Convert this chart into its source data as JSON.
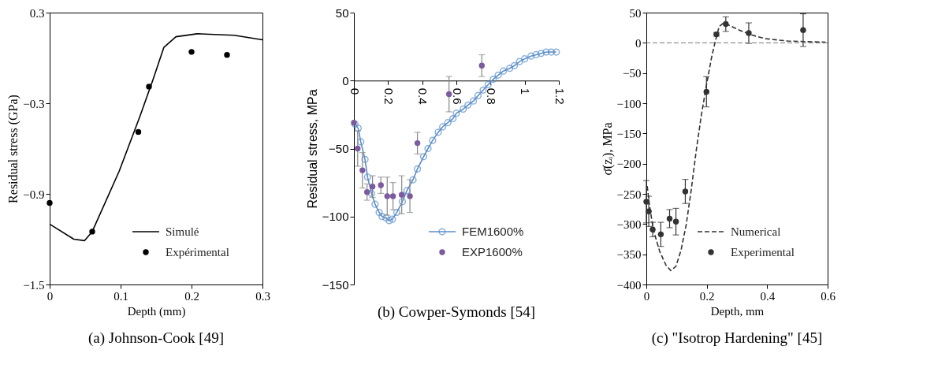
{
  "chart_data": [
    {
      "type": "line",
      "title": "(a) Johnson-Cook [49]",
      "xlabel": "Depth (mm)",
      "ylabel": "Residual stress (GPa)",
      "xlim": [
        0,
        0.3
      ],
      "ylim": [
        -1.5,
        0.3
      ],
      "xticks": [
        0,
        0.1,
        0.2,
        0.3
      ],
      "yticks": [
        -1.5,
        -0.9,
        -0.3,
        0.3
      ],
      "grid": false,
      "legend": "bottom right",
      "series": [
        {
          "name": "Simulé",
          "marker": "none",
          "line_style": "solid",
          "color": "#000000",
          "x": [
            0,
            0.034,
            0.049,
            0.06,
            0.098,
            0.127,
            0.146,
            0.161,
            0.178,
            0.208,
            0.26,
            0.3
          ],
          "values": [
            -1.1,
            -1.2,
            -1.21,
            -1.15,
            -0.75,
            -0.39,
            -0.14,
            0.07,
            0.14,
            0.16,
            0.15,
            0.12
          ]
        },
        {
          "name": "Expérimental",
          "type": "scatter",
          "marker": "circle",
          "color": "#000000",
          "x": [
            0,
            0.06,
            0.125,
            0.14,
            0.2,
            0.25
          ],
          "values": [
            -0.96,
            -1.15,
            -0.49,
            -0.19,
            0.04,
            0.02
          ]
        }
      ]
    },
    {
      "type": "line",
      "title": "(b) Cowper-Symonds [54]",
      "ylabel": "Residual stress, MPa",
      "xlim": [
        0,
        1.2
      ],
      "ylim": [
        -150,
        50
      ],
      "xticks": [
        0,
        0.2,
        0.4,
        0.6,
        0.8,
        1,
        1.2
      ],
      "yticks": [
        -150,
        -100,
        -50,
        0,
        50
      ],
      "grid": false,
      "legend": "bottom right",
      "series": [
        {
          "name": "FEM1600%",
          "marker": "circle",
          "line_style": "solid",
          "color": "#5b8ec8",
          "x": [
            0.006,
            0.025,
            0.04,
            0.065,
            0.08,
            0.103,
            0.124,
            0.148,
            0.165,
            0.188,
            0.207,
            0.225,
            0.251,
            0.284,
            0.31,
            0.346,
            0.372,
            0.408,
            0.434,
            0.461,
            0.494,
            0.52,
            0.55,
            0.58,
            0.6,
            0.64,
            0.668,
            0.7,
            0.727,
            0.757,
            0.786,
            0.816,
            0.845,
            0.875,
            0.912,
            0.94,
            0.97,
            1.0,
            1.037,
            1.067,
            1.096,
            1.126,
            1.156,
            1.185
          ],
          "values": [
            -32,
            -35,
            -45,
            -58,
            -71,
            -83,
            -91,
            -97,
            -100,
            -101,
            -103,
            -102,
            -97,
            -89,
            -81,
            -73,
            -65,
            -56,
            -50,
            -44,
            -38,
            -34,
            -31,
            -28,
            -24,
            -21,
            -18,
            -15,
            -11,
            -7,
            -3,
            1,
            4,
            7,
            9,
            11,
            14,
            16,
            18,
            19,
            20,
            21,
            21,
            21
          ]
        },
        {
          "name": "EXP1600%",
          "type": "scatter",
          "marker": "circle",
          "color": "#7b5a9e",
          "x": [
            0.0,
            0.022,
            0.05,
            0.077,
            0.109,
            0.158,
            0.195,
            0.229,
            0.28,
            0.328,
            0.372,
            0.557,
            0.749
          ],
          "values": [
            -31,
            -50,
            -66,
            -82,
            -78,
            -77,
            -85,
            -85,
            -84,
            -85,
            -46,
            -10,
            11
          ],
          "errors": [
            null,
            13,
            13,
            6,
            8,
            6,
            14,
            10,
            14,
            12,
            8,
            13,
            8
          ]
        }
      ]
    },
    {
      "type": "line",
      "title": "(c) \"Isotrop Hardening\" [45]",
      "xlabel": "Depth, mm",
      "ylabel": "σ̄(zᵢ), MPa",
      "xlim": [
        0,
        0.6
      ],
      "ylim": [
        -400,
        50
      ],
      "xticks": [
        0,
        0.2,
        0.4,
        0.6
      ],
      "yticks": [
        -400,
        -350,
        -300,
        -250,
        -200,
        -150,
        -100,
        -50,
        0,
        50
      ],
      "grid": false,
      "legend": "bottom right",
      "ref_lines": [
        {
          "axis": "y",
          "value": 0,
          "color": "#777777",
          "line_style": "dashed"
        }
      ],
      "series": [
        {
          "name": "Numerical",
          "marker": "none",
          "line_style": "dashed",
          "color": "#333333",
          "x": [
            0.003,
            0.01,
            0.023,
            0.044,
            0.065,
            0.081,
            0.098,
            0.115,
            0.132,
            0.149,
            0.165,
            0.182,
            0.199,
            0.216,
            0.228,
            0.241,
            0.256,
            0.274,
            0.308,
            0.342,
            0.392,
            0.467,
            0.593
          ],
          "values": [
            -237,
            -267,
            -309,
            -345,
            -368,
            -377,
            -370,
            -343,
            -301,
            -242,
            -179,
            -120,
            -70,
            -24,
            2,
            27,
            33,
            29,
            21,
            14,
            7,
            3,
            1
          ]
        },
        {
          "name": "Experimental",
          "type": "scatter",
          "marker": "circle",
          "color": "#333333",
          "x": [
            0.0,
            0.008,
            0.021,
            0.048,
            0.077,
            0.098,
            0.129,
            0.199,
            0.232,
            0.263,
            0.339,
            0.519
          ],
          "values": [
            -263,
            -279,
            -309,
            -317,
            -291,
            -296,
            -246,
            -81,
            14,
            31,
            16,
            21
          ],
          "errors": [
            35,
            25,
            12,
            20,
            15,
            22,
            20,
            25,
            3,
            12,
            17,
            27
          ]
        }
      ]
    }
  ]
}
